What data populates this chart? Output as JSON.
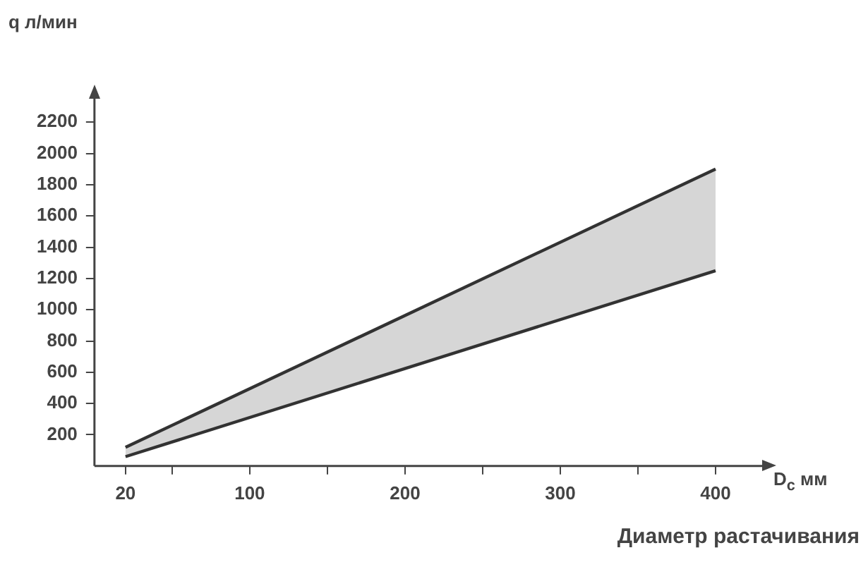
{
  "chart_data": {
    "type": "line",
    "ylabel": "q л/мин",
    "xlabel": "D$_{c}$ мм",
    "annotations": [
      "Диаметр растачивания"
    ],
    "x": [
      20,
      400
    ],
    "series": [
      {
        "color": "#333333",
        "values": [
          120,
          1900
        ],
        "lower": [
          60,
          1250
        ],
        "upper": [
          120,
          1900
        ]
      },
      {
        "color": "#333333",
        "values": [
          60,
          1250
        ]
      }
    ],
    "xlim": [
      0,
      430
    ],
    "xticks": [
      {
        "value": 20,
        "label": "20"
      },
      {
        "value": 50,
        "label": null
      },
      100,
      {
        "value": 150,
        "label": null
      },
      200,
      {
        "value": 250,
        "label": null
      },
      300,
      {
        "value": 350,
        "label": null
      },
      400
    ],
    "ylim": [
      0,
      2350
    ],
    "yticks": [
      200,
      400,
      600,
      800,
      1000,
      1200,
      1400,
      1600,
      1800,
      2000,
      2200
    ],
    "grid": false,
    "legend": false,
    "marker": "none",
    "line_style": "solid"
  }
}
